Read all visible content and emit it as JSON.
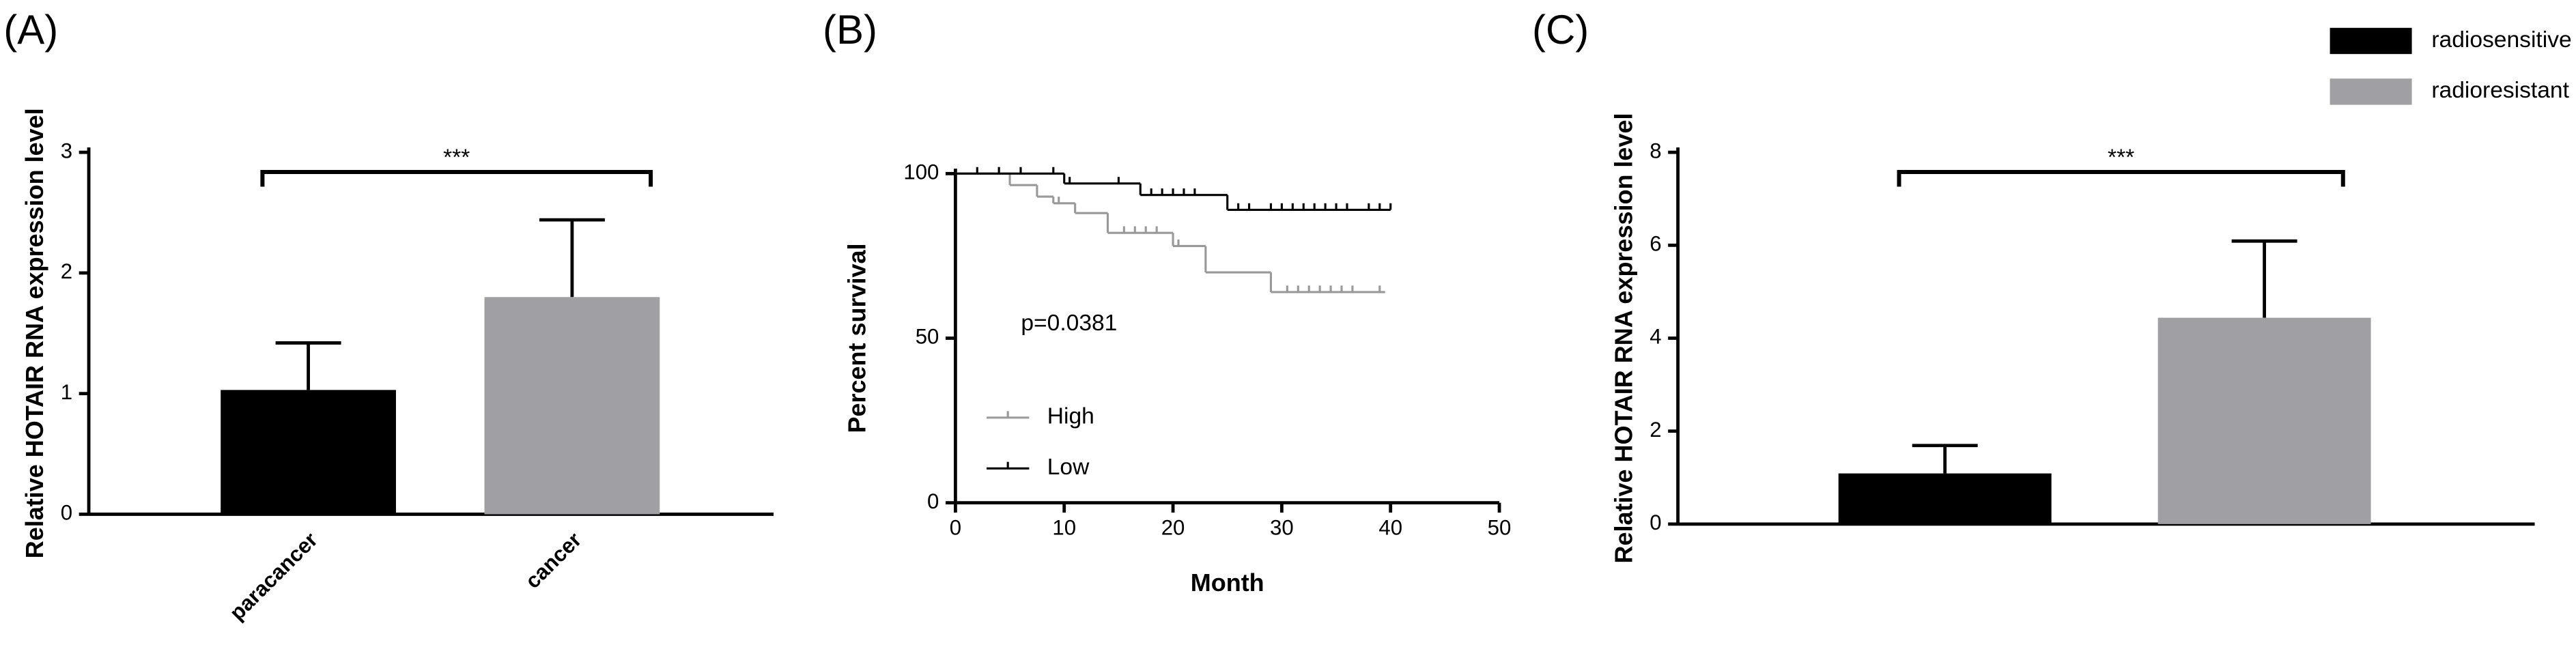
{
  "chart_data": [
    {
      "type": "bar",
      "panel": "(A)",
      "ylabel": "Relative HOTAIR RNA expression level",
      "categories": [
        "paracancer",
        "cancer"
      ],
      "values": [
        1.03,
        1.8
      ],
      "errors": [
        0.39,
        0.64
      ],
      "colors": [
        "#000000",
        "#a0a0a4"
      ],
      "annotation": "***",
      "ylim": [
        0,
        3
      ],
      "yticks": [
        0,
        1,
        2,
        3
      ]
    },
    {
      "type": "line",
      "step": "post",
      "panel": "(B)",
      "ylabel": "Percent survival",
      "xlabel": "Month",
      "annotation": "p=0.0381",
      "legend": "lower left",
      "xlim": [
        0,
        50
      ],
      "xticks": [
        0,
        10,
        20,
        30,
        40,
        50
      ],
      "ylim": [
        0,
        100
      ],
      "yticks": [
        0,
        50,
        100
      ],
      "series": [
        {
          "name": "High",
          "color": "#999999",
          "x": [
            0,
            5,
            7.5,
            9,
            11,
            14,
            20,
            23,
            29,
            39.5
          ],
          "values": [
            100,
            96.5,
            93,
            91,
            88,
            82,
            78,
            70,
            64,
            64
          ],
          "censor_x": [
            4,
            9.5,
            15.5,
            16.5,
            17.5,
            18.5,
            20.5,
            30.5,
            31.5,
            32.5,
            33.5,
            34.5,
            35.5,
            36.5,
            39
          ],
          "censor_y": [
            100,
            91,
            82,
            82,
            82,
            82,
            78,
            64,
            64,
            64,
            64,
            64,
            64,
            64,
            64
          ]
        },
        {
          "name": "Low",
          "color": "#000000",
          "x": [
            0,
            10,
            17,
            25,
            40
          ],
          "values": [
            100,
            97,
            93.5,
            89,
            89
          ],
          "censor_x": [
            2,
            4,
            6,
            9,
            10.5,
            15,
            18,
            19,
            20,
            21,
            22,
            26,
            27,
            29,
            30,
            31,
            32,
            33,
            34,
            35,
            36,
            38,
            39,
            40
          ],
          "censor_y": [
            100,
            100,
            100,
            100,
            97,
            97,
            93.5,
            93.5,
            93.5,
            93.5,
            93.5,
            89,
            89,
            89,
            89,
            89,
            89,
            89,
            89,
            89,
            89,
            89,
            89,
            89
          ]
        }
      ]
    },
    {
      "type": "bar",
      "panel": "(C)",
      "ylabel": "Relative HOTAIR RNA expression level",
      "categories": [
        null
      ],
      "annotation": "***",
      "legend": "upper right",
      "series": [
        {
          "name": "radiosensitive",
          "color": "#000000",
          "values": [
            1.09
          ],
          "errors": [
            0.6
          ]
        },
        {
          "name": "radioresistant",
          "color": "#a0a0a4",
          "values": [
            4.44
          ],
          "errors": [
            1.65
          ]
        }
      ],
      "ylim": [
        0,
        8
      ],
      "yticks": [
        0,
        2,
        4,
        6,
        8
      ]
    }
  ]
}
